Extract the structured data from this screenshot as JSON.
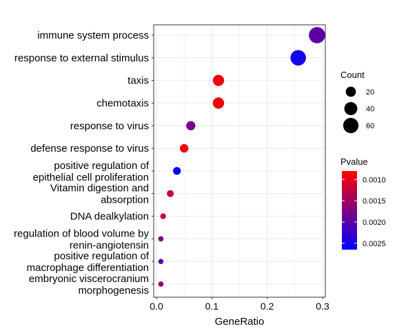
{
  "chart_data": {
    "type": "scatter",
    "xlabel": "GeneRatio",
    "xlim": [
      0,
      0.3
    ],
    "xticks": [
      "0.0",
      "0.1",
      "0.2",
      "0.3"
    ],
    "categories": [
      [
        "immune system process"
      ],
      [
        "response to external stimulus"
      ],
      [
        "taxis"
      ],
      [
        "chemotaxis"
      ],
      [
        "response to virus"
      ],
      [
        "defense response to virus"
      ],
      [
        "positive regulation of",
        "epithelial cell proliferation"
      ],
      [
        "Vitamin digestion and",
        "absorption"
      ],
      [
        "DNA dealkylation"
      ],
      [
        "regulation of blood volume by",
        "renin-angiotensin"
      ],
      [
        "positive regulation of",
        "macrophage differentiation"
      ],
      [
        "embryonic viscerocranium",
        "morphogenesis"
      ]
    ],
    "points": [
      {
        "gene_ratio": 0.29,
        "count": 70,
        "pvalue": 0.002
      },
      {
        "gene_ratio": 0.256,
        "count": 62,
        "pvalue": 0.0025
      },
      {
        "gene_ratio": 0.112,
        "count": 27,
        "pvalue": 0.0009
      },
      {
        "gene_ratio": 0.112,
        "count": 27,
        "pvalue": 0.0009
      },
      {
        "gene_ratio": 0.062,
        "count": 15,
        "pvalue": 0.0018
      },
      {
        "gene_ratio": 0.05,
        "count": 12,
        "pvalue": 0.0009
      },
      {
        "gene_ratio": 0.037,
        "count": 9,
        "pvalue": 0.0026
      },
      {
        "gene_ratio": 0.025,
        "count": 6,
        "pvalue": 0.0012
      },
      {
        "gene_ratio": 0.012,
        "count": 3,
        "pvalue": 0.0012
      },
      {
        "gene_ratio": 0.008,
        "count": 2,
        "pvalue": 0.0017
      },
      {
        "gene_ratio": 0.008,
        "count": 2,
        "pvalue": 0.002
      },
      {
        "gene_ratio": 0.008,
        "count": 2,
        "pvalue": 0.0016
      }
    ],
    "size_legend": {
      "title": "Count",
      "values": [
        20,
        40,
        60
      ],
      "labels": [
        "20",
        "40",
        "60"
      ]
    },
    "color_legend": {
      "title": "Pvalue",
      "range": [
        0.0008,
        0.00265
      ],
      "ticks": [
        0.001,
        0.0015,
        0.002,
        0.0025
      ],
      "labels": [
        "0.0010",
        "0.0015",
        "0.0020",
        "0.0025"
      ],
      "low_color": "#FF0000",
      "high_color": "#0000FF"
    },
    "grid": true,
    "legend_position": "right"
  }
}
